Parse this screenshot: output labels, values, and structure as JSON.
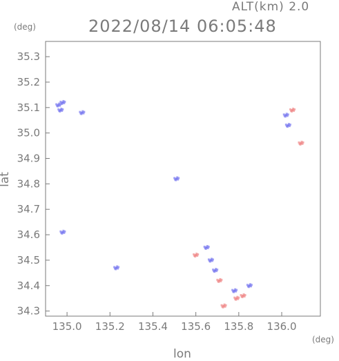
{
  "header": {
    "alt_label": "ALT(km) 2.0",
    "timestamp": "2022/08/14 06:05:48"
  },
  "chart_data": {
    "type": "scatter",
    "title": "2022/08/14 06:05:48",
    "xlabel": "lon",
    "ylabel": "lat",
    "x_unit": "(deg)",
    "y_unit": "(deg)",
    "xlim": [
      134.9,
      136.18
    ],
    "ylim": [
      34.28,
      35.36
    ],
    "x_ticks": [
      "135.0",
      "135.2",
      "135.4",
      "135.6",
      "135.8",
      "136.0"
    ],
    "x_tick_values": [
      135.0,
      135.2,
      135.4,
      135.6,
      135.8,
      136.0
    ],
    "y_ticks": [
      "34.3",
      "34.4",
      "34.5",
      "34.6",
      "34.7",
      "34.8",
      "34.9",
      "35.0",
      "35.1",
      "35.2",
      "35.3"
    ],
    "y_tick_values": [
      34.3,
      34.4,
      34.5,
      34.6,
      34.7,
      34.8,
      34.9,
      35.0,
      35.1,
      35.2,
      35.3
    ],
    "grid": false,
    "colors": {
      "positive": "#f08a8a",
      "negative": "#7a7af0",
      "axis": "#7a7a7a"
    },
    "clusters": [
      {
        "name": "nw-streak-1",
        "lon": 134.96,
        "lat": 35.11,
        "sign": "negative"
      },
      {
        "name": "nw-streak-2",
        "lon": 134.98,
        "lat": 35.12,
        "sign": "negative"
      },
      {
        "name": "nw-streak-3",
        "lon": 134.97,
        "lat": 35.09,
        "sign": "negative"
      },
      {
        "name": "nw-blob",
        "lon": 135.07,
        "lat": 35.08,
        "sign": "negative"
      },
      {
        "name": "ne-blob-1",
        "lon": 136.05,
        "lat": 35.09,
        "sign": "positive"
      },
      {
        "name": "ne-blob-2",
        "lon": 136.02,
        "lat": 35.07,
        "sign": "negative"
      },
      {
        "name": "ne-dot-1",
        "lon": 136.03,
        "lat": 35.03,
        "sign": "negative"
      },
      {
        "name": "ne-dot-2",
        "lon": 136.09,
        "lat": 34.96,
        "sign": "positive"
      },
      {
        "name": "center-dots",
        "lon": 135.51,
        "lat": 34.82,
        "sign": "negative"
      },
      {
        "name": "w-dot",
        "lon": 134.98,
        "lat": 34.61,
        "sign": "negative"
      },
      {
        "name": "sw-dot",
        "lon": 135.23,
        "lat": 34.47,
        "sign": "negative"
      },
      {
        "name": "s-cluster-1",
        "lon": 135.65,
        "lat": 34.55,
        "sign": "negative"
      },
      {
        "name": "s-cluster-2",
        "lon": 135.67,
        "lat": 34.5,
        "sign": "negative"
      },
      {
        "name": "s-cluster-3",
        "lon": 135.6,
        "lat": 34.52,
        "sign": "positive"
      },
      {
        "name": "s-cluster-4",
        "lon": 135.69,
        "lat": 34.46,
        "sign": "negative"
      },
      {
        "name": "s-cluster-5",
        "lon": 135.71,
        "lat": 34.42,
        "sign": "positive"
      },
      {
        "name": "s-cluster-6",
        "lon": 135.78,
        "lat": 34.38,
        "sign": "negative"
      },
      {
        "name": "s-cluster-7",
        "lon": 135.82,
        "lat": 34.36,
        "sign": "positive"
      },
      {
        "name": "s-cluster-8",
        "lon": 135.85,
        "lat": 34.4,
        "sign": "negative"
      },
      {
        "name": "s-cluster-9",
        "lon": 135.79,
        "lat": 34.35,
        "sign": "positive"
      },
      {
        "name": "s-cluster-10",
        "lon": 135.73,
        "lat": 34.32,
        "sign": "positive"
      }
    ]
  }
}
